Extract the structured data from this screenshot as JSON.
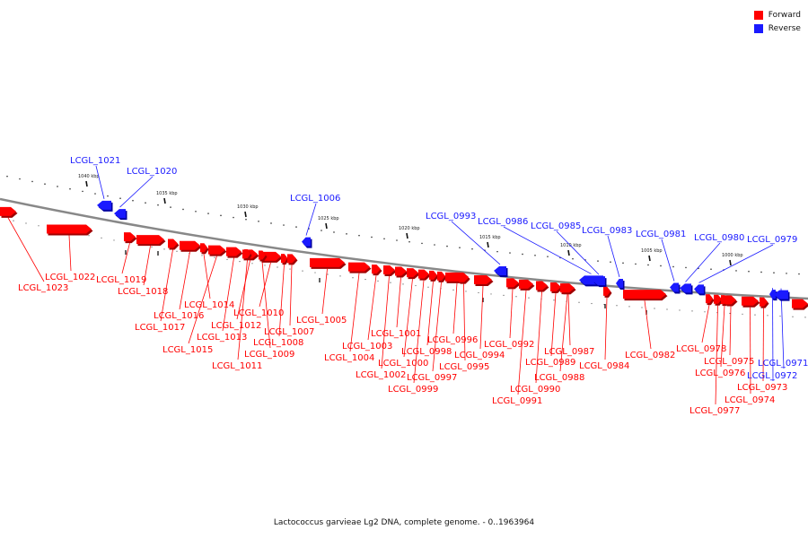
{
  "colors": {
    "forward": "#ff0000",
    "reverse": "#1a1aff",
    "backbone": "#888888",
    "tick": "#111111"
  },
  "legend": {
    "forward_label": "Forward",
    "reverse_label": "Reverse"
  },
  "footer": {
    "caption": "Lactococcus garvieae Lg2 DNA, complete genome. - 0..1963964"
  },
  "map": {
    "ticks": [
      "1040 kbp",
      "1035 kbp",
      "1030 kbp",
      "1025 kbp",
      "1020 kbp",
      "1015 kbp",
      "1010 kbp",
      "1005 kbp",
      "1000 kbp"
    ],
    "genes": [
      {
        "id": "LCGL_1023",
        "strand": "forward"
      },
      {
        "id": "LCGL_1022",
        "strand": "forward"
      },
      {
        "id": "LCGL_1021",
        "strand": "reverse"
      },
      {
        "id": "LCGL_1020",
        "strand": "reverse"
      },
      {
        "id": "LCGL_1019",
        "strand": "forward"
      },
      {
        "id": "LCGL_1018",
        "strand": "forward"
      },
      {
        "id": "LCGL_1017",
        "strand": "forward"
      },
      {
        "id": "LCGL_1016",
        "strand": "forward"
      },
      {
        "id": "LCGL_1015",
        "strand": "forward"
      },
      {
        "id": "LCGL_1014",
        "strand": "forward"
      },
      {
        "id": "LCGL_1013",
        "strand": "forward"
      },
      {
        "id": "LCGL_1012",
        "strand": "forward"
      },
      {
        "id": "LCGL_1011",
        "strand": "forward"
      },
      {
        "id": "LCGL_1010",
        "strand": "forward"
      },
      {
        "id": "LCGL_1009",
        "strand": "forward"
      },
      {
        "id": "LCGL_1008",
        "strand": "forward"
      },
      {
        "id": "LCGL_1007",
        "strand": "forward"
      },
      {
        "id": "LCGL_1006",
        "strand": "reverse"
      },
      {
        "id": "LCGL_1005",
        "strand": "forward"
      },
      {
        "id": "LCGL_1004",
        "strand": "forward"
      },
      {
        "id": "LCGL_1003",
        "strand": "forward"
      },
      {
        "id": "LCGL_1002",
        "strand": "forward"
      },
      {
        "id": "LCGL_1001",
        "strand": "forward"
      },
      {
        "id": "LCGL_1000",
        "strand": "forward"
      },
      {
        "id": "LCGL_0999",
        "strand": "forward"
      },
      {
        "id": "LCGL_0998",
        "strand": "forward"
      },
      {
        "id": "LCGL_0997",
        "strand": "forward"
      },
      {
        "id": "LCGL_0996",
        "strand": "forward"
      },
      {
        "id": "LCGL_0995",
        "strand": "forward"
      },
      {
        "id": "LCGL_0994",
        "strand": "forward"
      },
      {
        "id": "LCGL_0993",
        "strand": "reverse"
      },
      {
        "id": "LCGL_0992",
        "strand": "forward"
      },
      {
        "id": "LCGL_0991",
        "strand": "forward"
      },
      {
        "id": "LCGL_0990",
        "strand": "forward"
      },
      {
        "id": "LCGL_0989",
        "strand": "forward"
      },
      {
        "id": "LCGL_0988",
        "strand": "forward"
      },
      {
        "id": "LCGL_0987",
        "strand": "forward"
      },
      {
        "id": "LCGL_0986",
        "strand": "reverse"
      },
      {
        "id": "LCGL_0985",
        "strand": "reverse"
      },
      {
        "id": "LCGL_0984",
        "strand": "forward"
      },
      {
        "id": "LCGL_0983",
        "strand": "reverse"
      },
      {
        "id": "LCGL_0982",
        "strand": "forward"
      },
      {
        "id": "LCGL_0981",
        "strand": "reverse"
      },
      {
        "id": "LCGL_0980",
        "strand": "reverse"
      },
      {
        "id": "LCGL_0979",
        "strand": "reverse"
      },
      {
        "id": "LCGL_0978",
        "strand": "forward"
      },
      {
        "id": "LCGL_0977",
        "strand": "forward"
      },
      {
        "id": "LCGL_0976",
        "strand": "forward"
      },
      {
        "id": "LCGL_0975",
        "strand": "forward"
      },
      {
        "id": "LCGL_0974",
        "strand": "forward"
      },
      {
        "id": "LCGL_0973",
        "strand": "forward"
      },
      {
        "id": "LCGL_0972",
        "strand": "reverse"
      },
      {
        "id": "LCGL_0971",
        "strand": "reverse"
      }
    ]
  }
}
